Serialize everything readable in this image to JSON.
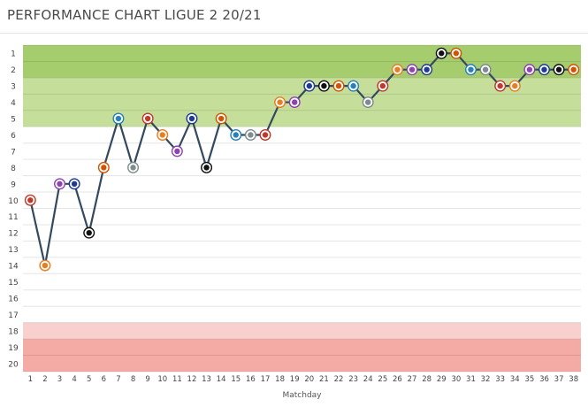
{
  "title": "PERFORMANCE CHART LIGUE 2 20/21",
  "chart_data": {
    "type": "line",
    "title": "PERFORMANCE CHART LIGUE 2 20/21",
    "xlabel": "Matchday",
    "ylabel": "",
    "x": [
      1,
      2,
      3,
      4,
      5,
      6,
      7,
      8,
      9,
      10,
      11,
      12,
      13,
      14,
      15,
      16,
      17,
      18,
      19,
      20,
      21,
      22,
      23,
      24,
      25,
      26,
      27,
      28,
      29,
      30,
      31,
      32,
      33,
      34,
      35,
      36,
      37,
      38
    ],
    "x_ticks": [
      "1",
      "2",
      "3",
      "4",
      "5",
      "6",
      "7",
      "8",
      "9",
      "10",
      "11",
      "12",
      "13",
      "14",
      "15",
      "16",
      "17",
      "18",
      "19",
      "20",
      "21",
      "22",
      "23",
      "24",
      "25",
      "26",
      "27",
      "28",
      "29",
      "30",
      "31",
      "32",
      "33",
      "34",
      "35",
      "36",
      "37",
      "38"
    ],
    "y_ticks": [
      "1",
      "2",
      "3",
      "4",
      "5",
      "6",
      "7",
      "8",
      "9",
      "10",
      "11",
      "12",
      "13",
      "14",
      "15",
      "16",
      "17",
      "18",
      "19",
      "20"
    ],
    "ylim": [
      20,
      1
    ],
    "y_inverted": true,
    "series": [
      {
        "values": [
          10,
          14,
          9,
          9,
          12,
          8,
          5,
          8,
          5,
          6,
          7,
          5,
          8,
          5,
          6,
          6,
          6,
          4,
          4,
          3,
          3,
          3,
          3,
          4,
          3,
          2,
          2,
          2,
          1,
          1,
          2,
          2,
          3,
          3,
          2,
          2,
          2,
          2
        ]
      }
    ],
    "bands": [
      {
        "from": 1,
        "to": 2,
        "color": "#a5cd6e"
      },
      {
        "from": 3,
        "to": 5,
        "color": "#c5df9a"
      },
      {
        "from": 6,
        "to": 17,
        "color": "#ffffff"
      },
      {
        "from": 18,
        "to": 18,
        "color": "#f8d1ce"
      },
      {
        "from": 19,
        "to": 20,
        "color": "#f4aaa5"
      }
    ],
    "line_color": "#34495e",
    "grid": true
  }
}
